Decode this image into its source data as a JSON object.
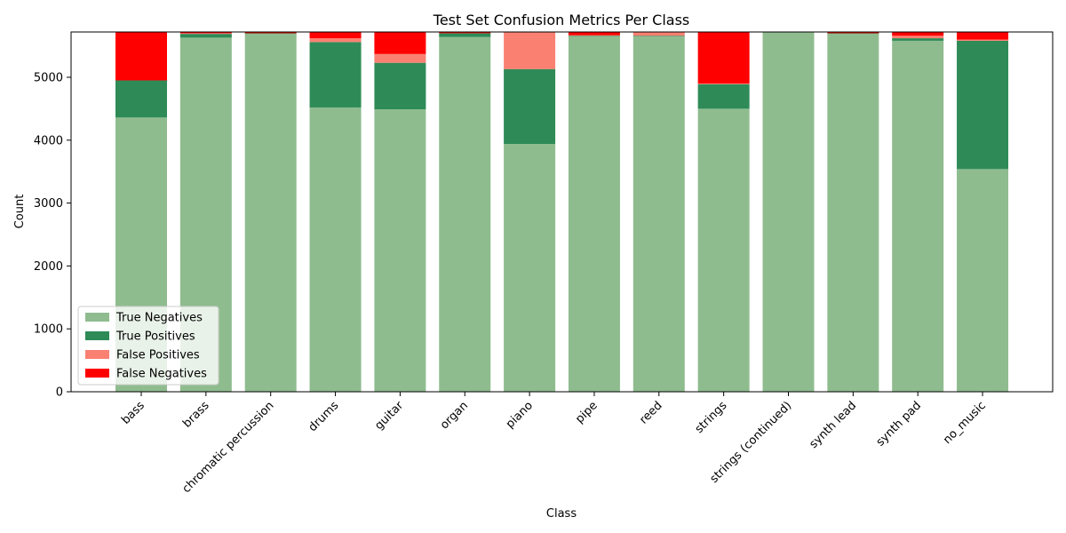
{
  "chart_data": {
    "type": "bar",
    "stacked": true,
    "title": "Test Set Confusion Metrics Per Class",
    "xlabel": "Class",
    "ylabel": "Count",
    "ylim": [
      0,
      5720
    ],
    "yticks": [
      0,
      1000,
      2000,
      3000,
      4000,
      5000
    ],
    "grid": false,
    "legend_position": "lower-left",
    "categories": [
      "bass",
      "brass",
      "chromatic percussion",
      "drums",
      "guitar",
      "organ",
      "piano",
      "pipe",
      "reed",
      "strings",
      "strings (continued)",
      "synth lead",
      "synth pad",
      "no_music"
    ],
    "series": [
      {
        "name": "True Negatives",
        "color": "#8fbc8f",
        "values": [
          4360,
          5630,
          5690,
          4520,
          4490,
          5640,
          3940,
          5650,
          5650,
          4500,
          5720,
          5690,
          5580,
          3540
        ]
      },
      {
        "name": "True Positives",
        "color": "#2e8b57",
        "values": [
          590,
          60,
          10,
          1040,
          740,
          60,
          1190,
          10,
          10,
          390,
          0,
          10,
          40,
          2040
        ]
      },
      {
        "name": "False Positives",
        "color": "#fa8072",
        "values": [
          0,
          10,
          0,
          60,
          140,
          0,
          590,
          10,
          60,
          10,
          0,
          0,
          40,
          20
        ]
      },
      {
        "name": "False Negatives",
        "color": "#ff0000",
        "values": [
          770,
          20,
          20,
          100,
          350,
          20,
          0,
          50,
          0,
          820,
          0,
          20,
          60,
          120
        ]
      }
    ]
  }
}
